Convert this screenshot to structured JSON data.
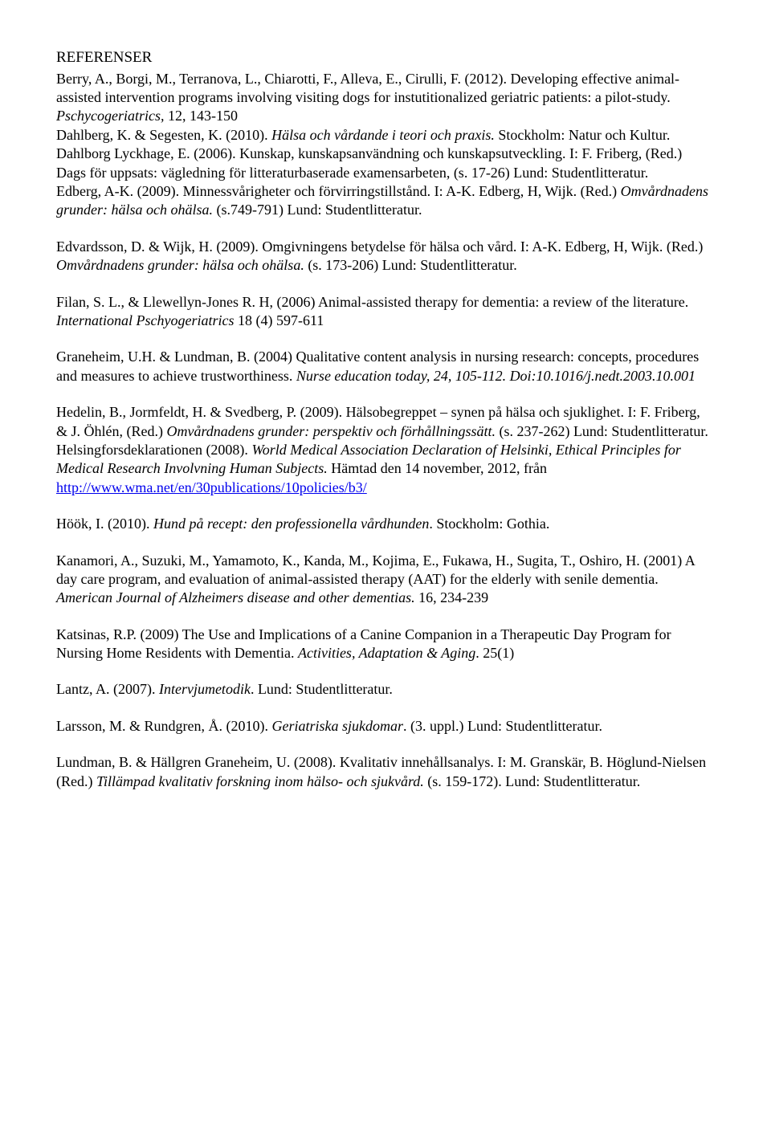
{
  "heading": "REFERENSER",
  "refs": {
    "r1a": "Berry, A., Borgi, M., Terranova, L., Chiarotti, F., Alleva, E., Cirulli, F. (2012). Developing effective animal-assisted intervention programs involving visiting dogs for instutitionalized geriatric patients: a pilot-study. ",
    "r1b": "Pschycogeriatrics, ",
    "r1c": "12, 143-150",
    "r2a": "Dahlberg, K. & Segesten, K. (2010). ",
    "r2b": "Hälsa och vårdande i teori och praxis. ",
    "r2c": "Stockholm: Natur och Kultur.",
    "r3a": "Dahlborg Lyckhage, E. (2006). Kunskap, kunskapsanvändning och kunskapsutveckling. I: F. Friberg, (Red.) Dags för uppsats: vägledning för litteraturbaserade examensarbeten, (s. 17-26) Lund: Studentlitteratur.",
    "r4a": "Edberg, A-K. (2009). Minnessvårigheter och förvirringstillstånd. I: A-K. Edberg, H, Wijk. (Red.) ",
    "r4b": "Omvårdnadens grunder: hälsa och ohälsa. ",
    "r4c": "(s.749-791) Lund: Studentlitteratur.",
    "r5a": "Edvardsson, D. & Wijk, H. (2009). Omgivningens betydelse för hälsa och vård. I: A-K. Edberg, H, Wijk. (Red.) ",
    "r5b": "Omvårdnadens grunder: hälsa och ohälsa. ",
    "r5c": "(s. 173-206) Lund: Studentlitteratur.",
    "r6a": "Filan, S. L., & Llewellyn-Jones R. H, (2006) Animal-assisted therapy for dementia: a review of the literature. ",
    "r6b": "International Pschyogeriatrics ",
    "r6c": "18 (4) 597-611",
    "r7a": "Graneheim, U.H. & Lundman, B. (2004) Qualitative content analysis in nursing research: concepts, procedures and measures to achieve trustworthiness. ",
    "r7b": "Nurse education today, 24, 105-112. Doi:10.1016/j.nedt.2003.10.001",
    "r8a": "Hedelin, B., Jormfeldt, H. & Svedberg, P. (2009). Hälsobegreppet – synen på hälsa och sjuklighet. I: F. Friberg, & J. Öhlén, (Red.) ",
    "r8b": "Omvårdnadens grunder: perspektiv och förhållningssätt. ",
    "r8c": "(s. 237-262) Lund: Studentlitteratur.",
    "r9a": "Helsingforsdeklarationen (2008). ",
    "r9b": "World Medical Association Declaration of Helsinki, Ethical Principles for Medical Research Involvning Human Subjects. ",
    "r9c": "Hämtad den 14 november, 2012, från ",
    "r9link": "http://www.wma.net/en/30publications/10policies/b3/",
    "r10a": "Höök, I. (2010). ",
    "r10b": "Hund på recept: den professionella vårdhunden",
    "r10c": ". Stockholm: Gothia.",
    "r11a": "Kanamori, A., Suzuki, M., Yamamoto, K., Kanda, M., Kojima, E., Fukawa, H., Sugita, T., Oshiro, H. (2001) A day care program, and evaluation of animal-assisted therapy (AAT) for the elderly with senile dementia. ",
    "r11b": "American Journal of Alzheimers disease and other dementias. ",
    "r11c": "16, 234-239",
    "r12a": "Katsinas, R.P. (2009) The Use and Implications of a Canine Companion in a Therapeutic Day Program for Nursing Home Residents with Dementia. ",
    "r12b": "Activities, Adaptation & Aging",
    "r12c": ". 25(1)",
    "r13a": "Lantz, A. (2007). ",
    "r13b": "Intervjumetodik",
    "r13c": ". Lund: Studentlitteratur.",
    "r14a": "Larsson, M. & Rundgren, Å. (2010). ",
    "r14b": "Geriatriska sjukdomar",
    "r14c": ". (3. uppl.) Lund: Studentlitteratur.",
    "r15a": "Lundman, B. & Hällgren Graneheim, U. (2008). Kvalitativ innehållsanalys. I: M. Granskär, B. Höglund-Nielsen (Red.) ",
    "r15b": "Tillämpad kvalitativ forskning inom hälso- och sjukvård. ",
    "r15c": "(s. 159-172). Lund: Studentlitteratur."
  }
}
